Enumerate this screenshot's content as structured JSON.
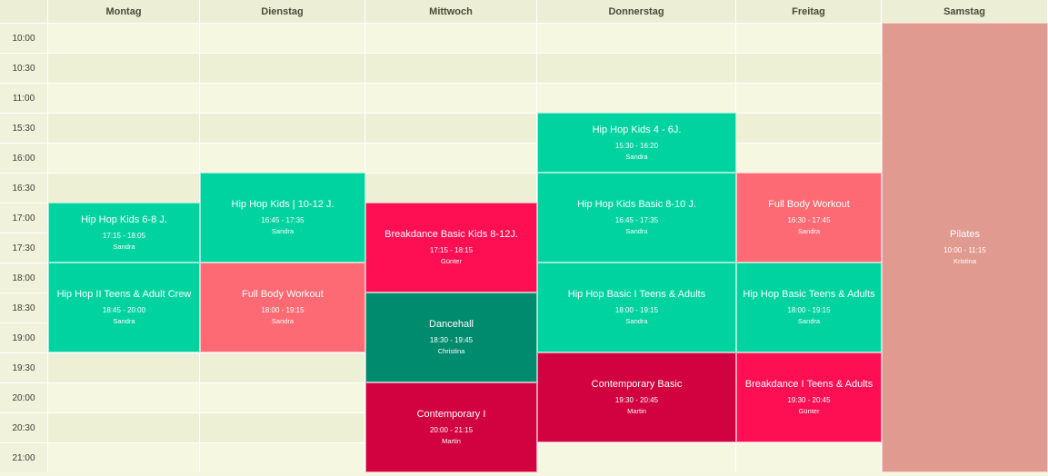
{
  "days": [
    "Montag",
    "Dienstag",
    "Mittwoch",
    "Donnerstag",
    "Freitag",
    "Samstag"
  ],
  "time_slots": [
    "10:00",
    "10:30",
    "11:00",
    "15:30",
    "16:00",
    "16:30",
    "17:00",
    "17:30",
    "18:00",
    "18:30",
    "19:00",
    "19:30",
    "20:00",
    "20:30",
    "21:00"
  ],
  "colors": {
    "teal": "#00d3a0",
    "dark_green": "#018b6e",
    "coral": "#fe6a73",
    "red": "#fe0e52",
    "crimson": "#d2013f",
    "dusty_pink": "#e09a90"
  },
  "events": [
    {
      "day": 0,
      "start": "17:00",
      "end": "18:00",
      "title": "Hip Hop Kids 6-8 J.",
      "time": "17:15 - 18:05",
      "trainer": "Sandra",
      "color": "#00d3a0"
    },
    {
      "day": 0,
      "start": "18:00",
      "end": "19:30",
      "title": "Hip Hop II Teens & Adult Crew",
      "time": "18:45 - 20:00",
      "trainer": "Sandra",
      "color": "#00d3a0"
    },
    {
      "day": 1,
      "start": "16:30",
      "end": "18:00",
      "title": "Hip Hop Kids | 10-12 J.",
      "time": "16:45 - 17:35",
      "trainer": "Sandra",
      "color": "#00d3a0"
    },
    {
      "day": 1,
      "start": "18:00",
      "end": "19:30",
      "title": "Full Body Workout",
      "time": "18:00 - 19:15",
      "trainer": "Sandra",
      "color": "#fe6a73"
    },
    {
      "day": 2,
      "start": "17:00",
      "end": "18:30",
      "title": "Breakdance Basic Kids 8-12J.",
      "time": "17:15 - 18:15",
      "trainer": "Günter",
      "color": "#fe0e52"
    },
    {
      "day": 2,
      "start": "18:30",
      "end": "20:00",
      "title": "Dancehall",
      "time": "18:30 - 19:45",
      "trainer": "Christina",
      "color": "#018b6e"
    },
    {
      "day": 2,
      "start": "20:00",
      "end": "21:30",
      "title": "Contemporary I",
      "time": "20:00 - 21:15",
      "trainer": "Martin",
      "color": "#d2013f"
    },
    {
      "day": 3,
      "start": "15:30",
      "end": "16:30",
      "title": "Hip Hop Kids 4 - 6J.",
      "time": "15:30 - 16:20",
      "trainer": "Sandra",
      "color": "#00d3a0"
    },
    {
      "day": 3,
      "start": "16:30",
      "end": "18:00",
      "title": "Hip Hop Kids Basic 8-10 J.",
      "time": "16:45 - 17:35",
      "trainer": "Sandra",
      "color": "#00d3a0"
    },
    {
      "day": 3,
      "start": "18:00",
      "end": "19:30",
      "title": "Hip Hop Basic I Teens & Adults",
      "time": "18:00 - 19:15",
      "trainer": "Sandra",
      "color": "#00d3a0"
    },
    {
      "day": 3,
      "start": "19:30",
      "end": "21:00",
      "title": "Contemporary Basic",
      "time": "19:30 - 20:45",
      "trainer": "Martin",
      "color": "#d2013f"
    },
    {
      "day": 4,
      "start": "16:30",
      "end": "18:00",
      "title": "Full Body Workout",
      "time": "16:30 - 17:45",
      "trainer": "Sandra",
      "color": "#fe6a73"
    },
    {
      "day": 4,
      "start": "18:00",
      "end": "19:30",
      "title": "Hip Hop Basic Teens & Adults",
      "time": "18:00 - 19:15",
      "trainer": "Sandra",
      "color": "#00d3a0"
    },
    {
      "day": 4,
      "start": "19:30",
      "end": "21:00",
      "title": "Breakdance I Teens & Adults",
      "time": "19:30 - 20:45",
      "trainer": "Günter",
      "color": "#fe0e52"
    },
    {
      "day": 5,
      "start": "10:00",
      "end": "11:30",
      "title": "Pilates",
      "time": "10:00 - 11:15",
      "trainer": "Kristina",
      "color": "#e09a90"
    }
  ]
}
